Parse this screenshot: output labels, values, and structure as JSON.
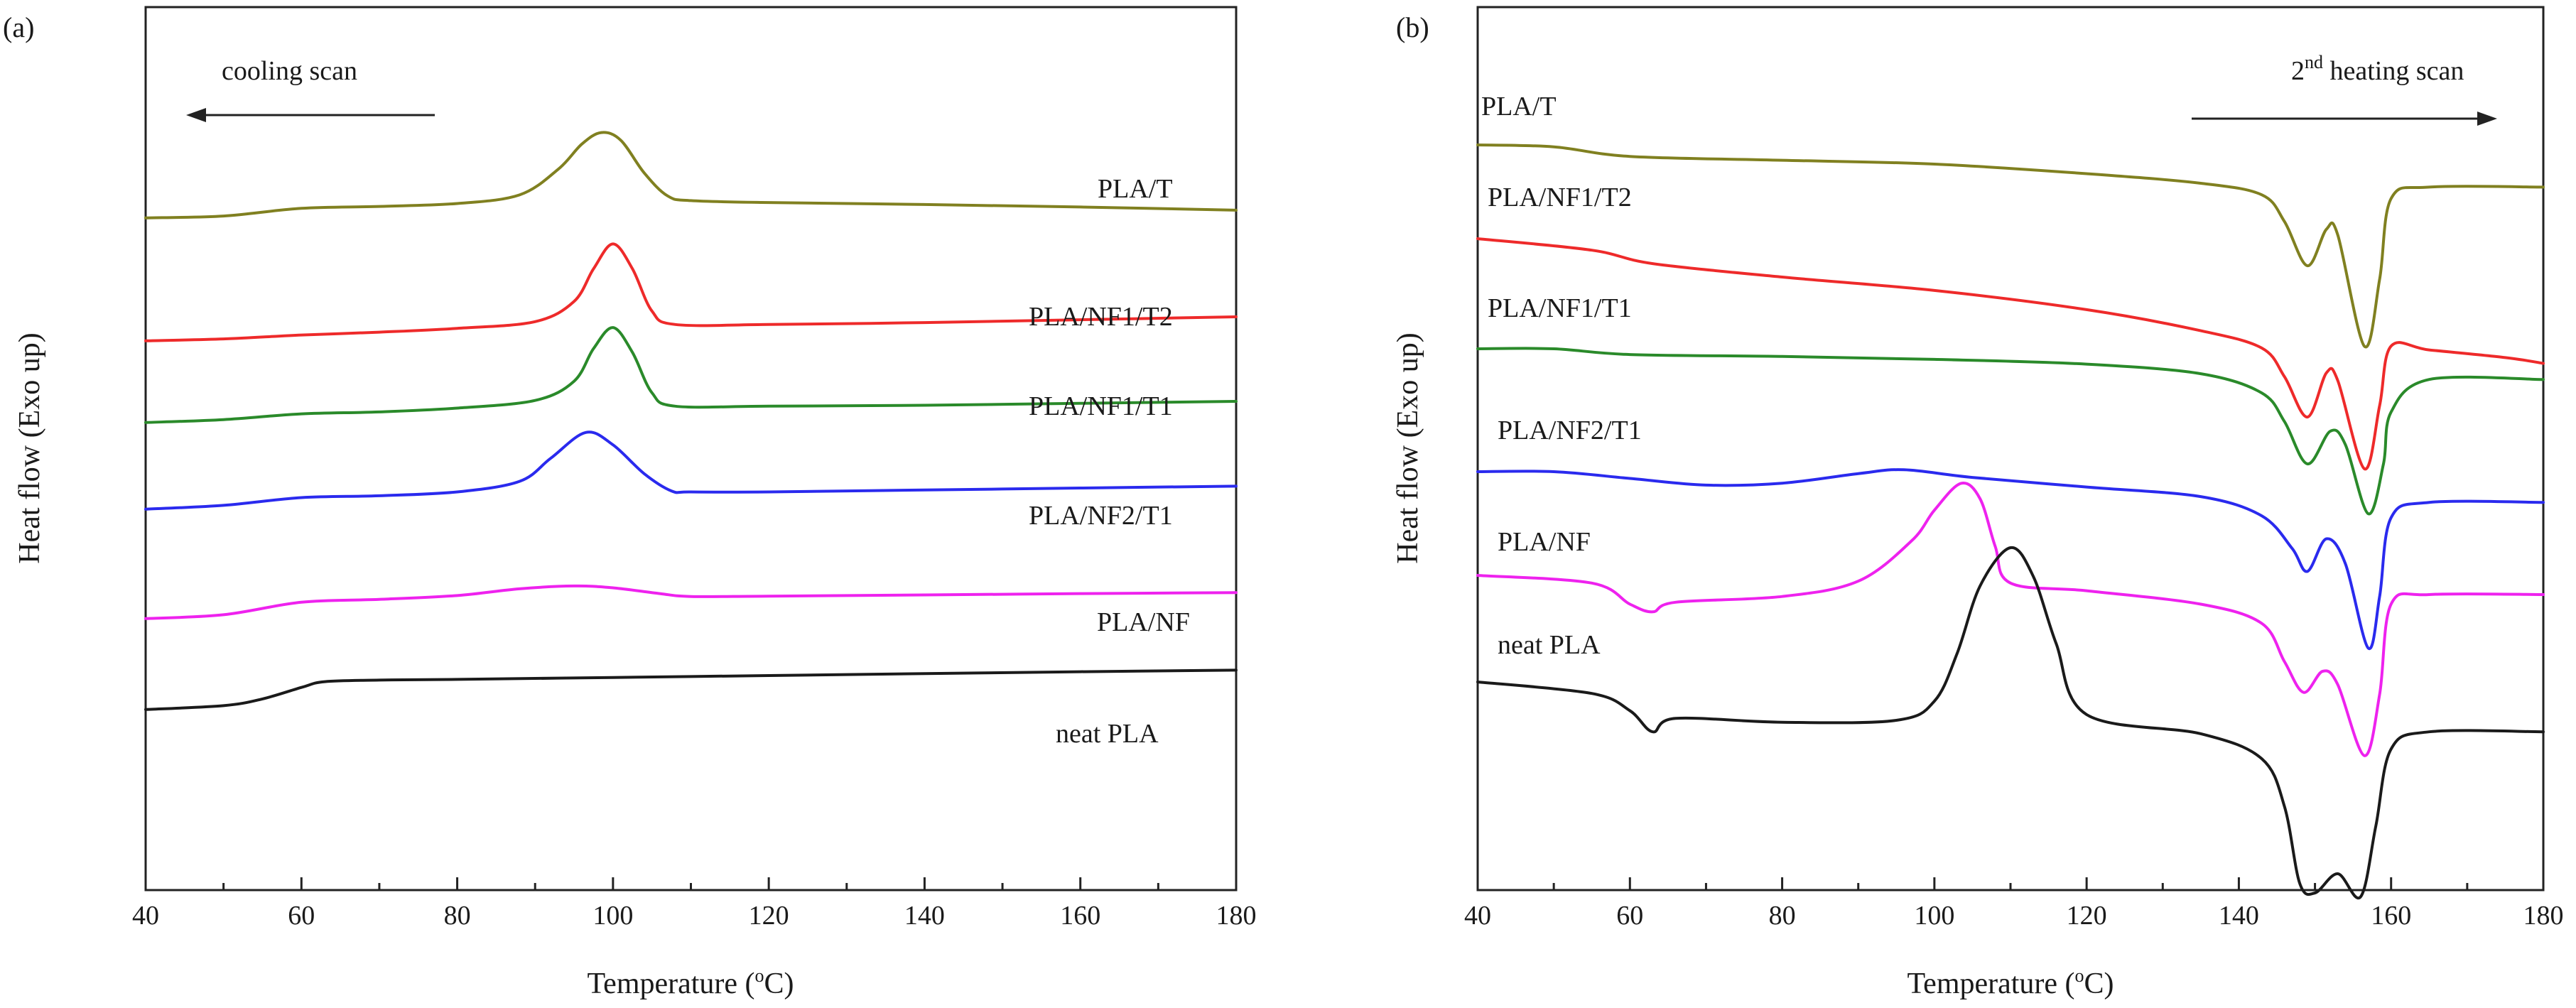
{
  "chart_data": [
    {
      "type": "line",
      "panel_label": "(a)",
      "title": "",
      "xlabel_prefix": "Temperature (",
      "xlabel_sup": "o",
      "xlabel_suffix": "C)",
      "ylabel": "Heat flow (Exo up)",
      "xlim": [
        40,
        180
      ],
      "x_ticks": [
        "40",
        "60",
        "80",
        "100",
        "120",
        "140",
        "160",
        "180"
      ],
      "y_ticks_shown": false,
      "annotation": {
        "text": "cooling scan",
        "arrow": "left"
      },
      "series": [
        {
          "name": "PLA/T",
          "color": "#808020",
          "points": [
            [
              40,
              -0.25
            ],
            [
              50,
              -0.15
            ],
            [
              60,
              0.25
            ],
            [
              70,
              0.35
            ],
            [
              80,
              0.5
            ],
            [
              88,
              0.95
            ],
            [
              93,
              2.3
            ],
            [
              96,
              3.6
            ],
            [
              98.5,
              4.2
            ],
            [
              101,
              3.8
            ],
            [
              104,
              2.1
            ],
            [
              107,
              0.9
            ],
            [
              110,
              0.65
            ],
            [
              120,
              0.55
            ],
            [
              140,
              0.45
            ],
            [
              160,
              0.32
            ],
            [
              180,
              0.15
            ]
          ]
        },
        {
          "name": "PLA/NF1/T2",
          "color": "#ee2a2a",
          "points": [
            [
              40,
              -0.25
            ],
            [
              50,
              -0.15
            ],
            [
              60,
              0.05
            ],
            [
              70,
              0.2
            ],
            [
              80,
              0.4
            ],
            [
              90,
              0.75
            ],
            [
              95,
              1.8
            ],
            [
              97.5,
              3.5
            ],
            [
              100,
              4.8
            ],
            [
              102.5,
              3.5
            ],
            [
              105,
              1.3
            ],
            [
              108,
              0.6
            ],
            [
              120,
              0.6
            ],
            [
              140,
              0.7
            ],
            [
              160,
              0.85
            ],
            [
              180,
              1.0
            ]
          ]
        },
        {
          "name": "PLA/NF1/T1",
          "color": "#2a8a2a",
          "points": [
            [
              40,
              -0.25
            ],
            [
              50,
              -0.1
            ],
            [
              60,
              0.2
            ],
            [
              70,
              0.3
            ],
            [
              80,
              0.5
            ],
            [
              90,
              0.9
            ],
            [
              95,
              1.9
            ],
            [
              97.5,
              3.6
            ],
            [
              100,
              4.7
            ],
            [
              102.5,
              3.4
            ],
            [
              105,
              1.3
            ],
            [
              108,
              0.6
            ],
            [
              120,
              0.6
            ],
            [
              140,
              0.65
            ],
            [
              160,
              0.75
            ],
            [
              180,
              0.85
            ]
          ]
        },
        {
          "name": "PLA/NF2/T1",
          "color": "#2a2aee",
          "points": [
            [
              40,
              -0.25
            ],
            [
              50,
              -0.05
            ],
            [
              60,
              0.35
            ],
            [
              70,
              0.45
            ],
            [
              80,
              0.65
            ],
            [
              88,
              1.2
            ],
            [
              92,
              2.4
            ],
            [
              96.5,
              3.75
            ],
            [
              100,
              3.1
            ],
            [
              104,
              1.6
            ],
            [
              107.5,
              0.7
            ],
            [
              110,
              0.65
            ],
            [
              120,
              0.65
            ],
            [
              140,
              0.75
            ],
            [
              160,
              0.85
            ],
            [
              180,
              0.95
            ]
          ]
        },
        {
          "name": "PLA/NF",
          "color": "#ee22ee",
          "points": [
            [
              40,
              -0.25
            ],
            [
              50,
              -0.05
            ],
            [
              60,
              0.6
            ],
            [
              70,
              0.75
            ],
            [
              80,
              0.95
            ],
            [
              88,
              1.3
            ],
            [
              95,
              1.45
            ],
            [
              100,
              1.35
            ],
            [
              106,
              1.05
            ],
            [
              110,
              0.9
            ],
            [
              120,
              0.92
            ],
            [
              140,
              0.98
            ],
            [
              160,
              1.05
            ],
            [
              180,
              1.1
            ]
          ]
        },
        {
          "name": "neat PLA",
          "color": "#1a1a1a",
          "points": [
            [
              40,
              -0.25
            ],
            [
              50,
              -0.05
            ],
            [
              55,
              0.3
            ],
            [
              60,
              0.9
            ],
            [
              63,
              1.2
            ],
            [
              70,
              1.28
            ],
            [
              80,
              1.32
            ],
            [
              100,
              1.42
            ],
            [
              120,
              1.52
            ],
            [
              140,
              1.62
            ],
            [
              160,
              1.72
            ],
            [
              180,
              1.8
            ]
          ]
        }
      ]
    },
    {
      "type": "line",
      "panel_label": "(b)",
      "title": "",
      "xlabel_prefix": "Temperature (",
      "xlabel_sup": "o",
      "xlabel_suffix": "C)",
      "ylabel": "Heat flow (Exo up)",
      "xlim": [
        40,
        180
      ],
      "x_ticks": [
        "40",
        "60",
        "80",
        "100",
        "120",
        "140",
        "160",
        "180"
      ],
      "y_ticks_shown": false,
      "annotation": {
        "text_prefix": "2",
        "text_sup": "nd",
        "text_suffix": " heating scan",
        "arrow": "right"
      },
      "series": [
        {
          "name": "PLA/T",
          "color": "#808020",
          "points": [
            [
              40,
              0
            ],
            [
              50,
              -0.1
            ],
            [
              60,
              -0.6
            ],
            [
              80,
              -0.8
            ],
            [
              100,
              -1.0
            ],
            [
              120,
              -1.5
            ],
            [
              135,
              -2.0
            ],
            [
              143,
              -2.6
            ],
            [
              146,
              -4.0
            ],
            [
              149,
              -6.3
            ],
            [
              151.5,
              -4.4
            ],
            [
              153,
              -4.7
            ],
            [
              156.5,
              -10.5
            ],
            [
              158.5,
              -7.0
            ],
            [
              160,
              -2.8
            ],
            [
              165,
              -2.2
            ],
            [
              180,
              -2.2
            ]
          ]
        },
        {
          "name": "PLA/NF1/T2",
          "color": "#ee2a2a",
          "points": [
            [
              40,
              0
            ],
            [
              55,
              -0.6
            ],
            [
              63,
              -1.3
            ],
            [
              80,
              -2.0
            ],
            [
              100,
              -2.7
            ],
            [
              120,
              -3.7
            ],
            [
              135,
              -4.8
            ],
            [
              143,
              -5.7
            ],
            [
              146,
              -7.2
            ],
            [
              149,
              -9.3
            ],
            [
              151.5,
              -7.0
            ],
            [
              153,
              -7.4
            ],
            [
              156.5,
              -12.0
            ],
            [
              158.5,
              -8.7
            ],
            [
              160,
              -5.6
            ],
            [
              165,
              -5.8
            ],
            [
              175,
              -6.2
            ],
            [
              180,
              -6.5
            ]
          ]
        },
        {
          "name": "PLA/NF1/T1",
          "color": "#2a8a2a",
          "points": [
            [
              40,
              0
            ],
            [
              50,
              0
            ],
            [
              60,
              -0.3
            ],
            [
              80,
              -0.4
            ],
            [
              100,
              -0.55
            ],
            [
              120,
              -0.8
            ],
            [
              135,
              -1.3
            ],
            [
              143,
              -2.3
            ],
            [
              146,
              -3.8
            ],
            [
              149,
              -6.0
            ],
            [
              152,
              -4.3
            ],
            [
              154,
              -5.0
            ],
            [
              157,
              -8.6
            ],
            [
              159,
              -6.0
            ],
            [
              160,
              -3.3
            ],
            [
              165,
              -1.6
            ],
            [
              180,
              -1.6
            ]
          ]
        },
        {
          "name": "PLA/NF2/T1",
          "color": "#2a2aee",
          "points": [
            [
              40,
              0
            ],
            [
              50,
              0
            ],
            [
              60,
              -0.35
            ],
            [
              70,
              -0.7
            ],
            [
              80,
              -0.6
            ],
            [
              90,
              -0.1
            ],
            [
              96,
              0.1
            ],
            [
              105,
              -0.3
            ],
            [
              120,
              -0.8
            ],
            [
              135,
              -1.3
            ],
            [
              143,
              -2.3
            ],
            [
              147,
              -4.0
            ],
            [
              149,
              -5.2
            ],
            [
              151.5,
              -3.5
            ],
            [
              154,
              -4.8
            ],
            [
              157,
              -9.2
            ],
            [
              158.5,
              -6.5
            ],
            [
              160,
              -2.4
            ],
            [
              165,
              -1.6
            ],
            [
              180,
              -1.6
            ]
          ]
        },
        {
          "name": "PLA/NF",
          "color": "#ee22ee",
          "points": [
            [
              40,
              0
            ],
            [
              55,
              -0.4
            ],
            [
              60,
              -1.5
            ],
            [
              63,
              -1.9
            ],
            [
              66,
              -1.4
            ],
            [
              80,
              -1.1
            ],
            [
              90,
              -0.3
            ],
            [
              97,
              1.8
            ],
            [
              100,
              3.4
            ],
            [
              103.5,
              4.8
            ],
            [
              106,
              4.0
            ],
            [
              108,
              1.5
            ],
            [
              110,
              -0.4
            ],
            [
              120,
              -0.8
            ],
            [
              135,
              -1.5
            ],
            [
              143,
              -2.5
            ],
            [
              146,
              -4.5
            ],
            [
              148.5,
              -6.1
            ],
            [
              151,
              -5.0
            ],
            [
              153,
              -5.7
            ],
            [
              156.5,
              -9.4
            ],
            [
              158.5,
              -6.2
            ],
            [
              160,
              -1.5
            ],
            [
              165,
              -1.0
            ],
            [
              180,
              -1.0
            ]
          ]
        },
        {
          "name": "neat PLA",
          "color": "#1a1a1a",
          "points": [
            [
              40,
              0
            ],
            [
              55,
              -0.6
            ],
            [
              60,
              -1.5
            ],
            [
              63,
              -2.6
            ],
            [
              66,
              -1.9
            ],
            [
              80,
              -2.1
            ],
            [
              95,
              -2.0
            ],
            [
              100,
              -1.0
            ],
            [
              103,
              1.5
            ],
            [
              106,
              5.0
            ],
            [
              110,
              7.0
            ],
            [
              113,
              5.5
            ],
            [
              116,
              2.0
            ],
            [
              120,
              -1.7
            ],
            [
              135,
              -2.7
            ],
            [
              143,
              -4.0
            ],
            [
              146,
              -6.5
            ],
            [
              148,
              -10.5
            ],
            [
              150,
              -11.0
            ],
            [
              153,
              -10.0
            ],
            [
              156,
              -11.2
            ],
            [
              158,
              -7.5
            ],
            [
              160,
              -3.5
            ],
            [
              165,
              -2.6
            ],
            [
              180,
              -2.6
            ]
          ]
        }
      ]
    }
  ]
}
